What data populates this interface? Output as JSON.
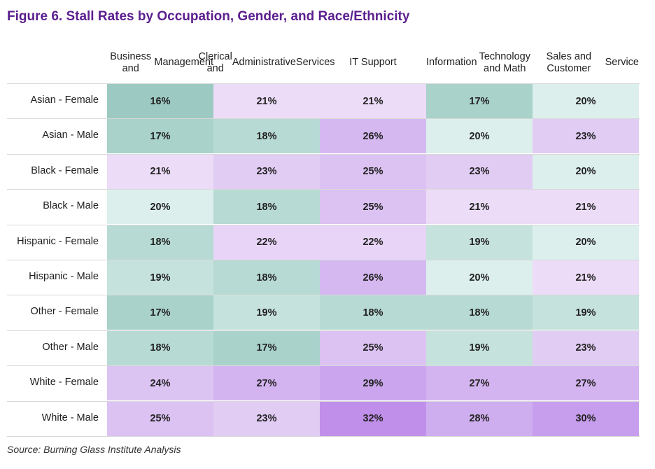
{
  "title": "Figure 6. Stall Rates by Occupation, Gender, and Race/Ethnicity",
  "source": "Source: Burning Glass Institute Analysis",
  "chart_data": {
    "type": "heatmap",
    "title": "Figure 6. Stall Rates by Occupation, Gender, and Race/Ethnicity",
    "columns": [
      "Business and Management",
      "Clerical and Administrative Services",
      "IT Support",
      "Information Technology and Math",
      "Sales and Customer Service"
    ],
    "column_lines": [
      [
        "Business and",
        "Management"
      ],
      [
        "Clerical and",
        "Administrative",
        "Services"
      ],
      [
        "IT Support"
      ],
      [
        "Information",
        "Technology and Math"
      ],
      [
        "Sales and Customer",
        "Service"
      ]
    ],
    "rows": [
      "Asian - Female",
      "Asian - Male",
      "Black - Female",
      "Black - Male",
      "Hispanic - Female",
      "Hispanic - Male",
      "Other - Female",
      "Other - Male",
      "White - Female",
      "White - Male"
    ],
    "values": [
      [
        16,
        21,
        21,
        17,
        20
      ],
      [
        17,
        18,
        26,
        20,
        23
      ],
      [
        21,
        23,
        25,
        23,
        20
      ],
      [
        20,
        18,
        25,
        21,
        21
      ],
      [
        18,
        22,
        22,
        19,
        20
      ],
      [
        19,
        18,
        26,
        20,
        21
      ],
      [
        17,
        19,
        18,
        18,
        19
      ],
      [
        18,
        17,
        25,
        19,
        23
      ],
      [
        24,
        27,
        29,
        27,
        27
      ],
      [
        25,
        23,
        32,
        28,
        30
      ]
    ],
    "value_suffix": "%",
    "colors": {
      "16": "#9ccac2",
      "17": "#a9d2cb",
      "18": "#b7dad4",
      "19": "#c6e2dd",
      "20": "#dcefed",
      "21": "#ecdcf7",
      "22": "#e7d4f6",
      "23": "#e1ccf4",
      "24": "#dbc3f2",
      "25": "#dcc2f3",
      "26": "#d6b8f1",
      "27": "#d3b4f0",
      "28": "#cfaeef",
      "29": "#cba6ee",
      "30": "#c79eed",
      "32": "#c08fea"
    },
    "grid": false,
    "legend": "none"
  }
}
